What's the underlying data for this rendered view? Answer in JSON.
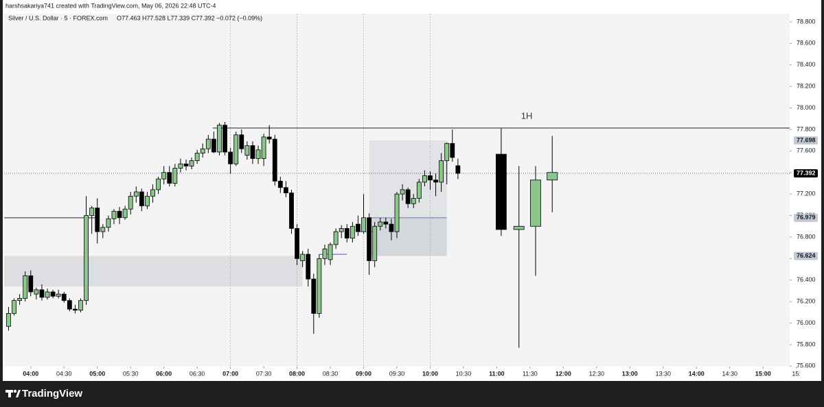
{
  "header": "harshsakariya741 created with TradingView.com, May 06, 2026 22:48 UTC-4",
  "footer_logo": "TradingView",
  "chart_data": {
    "type": "candlestick",
    "symbol_legend": "Silver / U.S. Dollar · 5 · FOREX.com",
    "ohlc_legend": "O77.463 H77.528 L77.339 C77.392 −0.072 (−0.09%)",
    "up_color": "#8cc68c",
    "down_color": "#000000",
    "xlim": [
      216,
      924
    ],
    "xticks": [
      {
        "value": 240,
        "label": "04:00"
      },
      {
        "value": 270,
        "label": "04:30"
      },
      {
        "value": 300,
        "label": "05:00"
      },
      {
        "value": 330,
        "label": "05:30"
      },
      {
        "value": 360,
        "label": "06:00"
      },
      {
        "value": 390,
        "label": "06:30"
      },
      {
        "value": 420,
        "label": "07:00"
      },
      {
        "value": 450,
        "label": "07:30"
      },
      {
        "value": 480,
        "label": "08:00"
      },
      {
        "value": 510,
        "label": "08:30"
      },
      {
        "value": 540,
        "label": "09:00"
      },
      {
        "value": 570,
        "label": "09:30"
      },
      {
        "value": 600,
        "label": "10:00"
      },
      {
        "value": 630,
        "label": "10:30"
      },
      {
        "value": 660,
        "label": "11:00"
      },
      {
        "value": 690,
        "label": "11:30"
      },
      {
        "value": 720,
        "label": "12:00"
      },
      {
        "value": 750,
        "label": "12:30"
      },
      {
        "value": 780,
        "label": "13:00"
      },
      {
        "value": 810,
        "label": "13:30"
      },
      {
        "value": 840,
        "label": "14:00"
      },
      {
        "value": 870,
        "label": "14:30"
      },
      {
        "value": 900,
        "label": "15:00"
      },
      {
        "value": 930,
        "label": "15:"
      }
    ],
    "ylim": [
      75.596,
      78.876
    ],
    "yticks": [
      {
        "value": 75.6,
        "label": "75.600"
      },
      {
        "value": 75.8,
        "label": "75.800"
      },
      {
        "value": 76.0,
        "label": "76.000"
      },
      {
        "value": 76.2,
        "label": "76.200"
      },
      {
        "value": 76.4,
        "label": "76.400"
      },
      {
        "value": 76.6,
        "label": "76.600"
      },
      {
        "value": 76.8,
        "label": "76.800"
      },
      {
        "value": 77.0,
        "label": "77.000"
      },
      {
        "value": 77.2,
        "label": "77.200"
      },
      {
        "value": 77.4,
        "label": "77.400"
      },
      {
        "value": 77.6,
        "label": "77.600"
      },
      {
        "value": 77.8,
        "label": "77.800"
      },
      {
        "value": 78.0,
        "label": "78.000"
      },
      {
        "value": 78.2,
        "label": "78.200"
      },
      {
        "value": 78.4,
        "label": "78.400"
      },
      {
        "value": 78.6,
        "label": "78.600"
      },
      {
        "value": 78.8,
        "label": "78.800"
      }
    ],
    "session_lines": [
      420,
      480,
      540,
      600
    ],
    "candles": {
      "x": [
        220,
        225,
        230,
        235,
        240,
        245,
        250,
        255,
        260,
        265,
        270,
        275,
        280,
        285,
        290,
        295,
        300,
        305,
        310,
        315,
        320,
        325,
        330,
        335,
        340,
        345,
        350,
        355,
        360,
        365,
        370,
        375,
        380,
        385,
        390,
        395,
        400,
        405,
        410,
        415,
        420,
        425,
        430,
        435,
        440,
        445,
        450,
        455,
        460,
        465,
        470,
        475,
        480,
        485,
        490,
        495,
        500,
        505,
        510,
        515,
        520,
        525,
        530,
        535,
        540,
        545,
        550,
        555,
        560,
        565,
        570,
        575,
        580,
        585,
        590,
        595,
        600,
        605,
        610,
        615,
        620,
        625
      ],
      "open": [
        75.97,
        76.09,
        76.21,
        76.23,
        76.44,
        76.27,
        76.31,
        76.24,
        76.29,
        76.25,
        76.27,
        76.21,
        76.13,
        76.12,
        76.21,
        77.0,
        77.07,
        76.85,
        76.89,
        76.97,
        77.04,
        76.98,
        77.06,
        77.18,
        77.22,
        77.09,
        77.18,
        77.24,
        77.34,
        77.4,
        77.3,
        77.44,
        77.48,
        77.46,
        77.51,
        77.58,
        77.62,
        77.71,
        77.59,
        77.84,
        77.59,
        77.48,
        77.75,
        77.56,
        77.65,
        77.53,
        77.53,
        77.73,
        77.71,
        77.32,
        77.26,
        77.21,
        76.88,
        76.58,
        76.64,
        76.41,
        76.09,
        76.6,
        76.59,
        76.73,
        76.85,
        76.88,
        76.79,
        76.92,
        76.85,
        76.98,
        76.58,
        76.9,
        76.94,
        76.92,
        76.85,
        77.2,
        77.24,
        77.11,
        77.16,
        77.31,
        77.37,
        77.33,
        77.31,
        77.51,
        77.67,
        77.463
      ],
      "high": [
        76.15,
        76.23,
        76.27,
        76.48,
        76.49,
        76.33,
        76.36,
        76.32,
        76.31,
        76.31,
        76.29,
        76.23,
        76.17,
        76.23,
        77.18,
        77.09,
        77.16,
        76.92,
        77.0,
        77.06,
        77.08,
        77.09,
        77.22,
        77.27,
        77.25,
        77.22,
        77.29,
        77.36,
        77.46,
        77.46,
        77.48,
        77.53,
        77.52,
        77.54,
        77.61,
        77.67,
        77.75,
        77.78,
        77.86,
        77.87,
        77.63,
        77.78,
        77.8,
        77.69,
        77.69,
        77.65,
        77.76,
        77.84,
        77.75,
        77.36,
        77.32,
        77.24,
        76.92,
        76.67,
        76.69,
        76.46,
        76.64,
        76.73,
        76.75,
        76.88,
        76.91,
        76.92,
        76.94,
        77.0,
        77.2,
        77.02,
        76.94,
        76.98,
        76.98,
        76.97,
        77.22,
        77.29,
        77.26,
        77.2,
        77.34,
        77.42,
        77.41,
        77.39,
        77.58,
        77.68,
        77.8,
        77.528
      ],
      "low": [
        75.93,
        76.07,
        76.17,
        76.2,
        76.25,
        76.22,
        76.21,
        76.22,
        76.23,
        76.23,
        76.19,
        76.11,
        76.09,
        76.1,
        76.17,
        76.83,
        76.74,
        76.79,
        76.85,
        76.92,
        76.92,
        76.96,
        77.01,
        77.12,
        77.04,
        77.06,
        77.12,
        77.2,
        77.29,
        77.27,
        77.27,
        77.4,
        77.42,
        77.43,
        77.48,
        77.54,
        77.58,
        77.58,
        77.56,
        77.56,
        77.39,
        77.46,
        77.58,
        77.52,
        77.48,
        77.48,
        77.46,
        77.67,
        77.28,
        77.21,
        77.17,
        76.83,
        76.54,
        76.52,
        76.34,
        75.9,
        76.05,
        76.54,
        76.54,
        76.69,
        76.79,
        76.75,
        76.75,
        76.81,
        76.83,
        76.45,
        76.52,
        76.86,
        76.88,
        76.77,
        76.79,
        77.14,
        77.07,
        77.07,
        77.12,
        77.27,
        77.24,
        77.18,
        77.22,
        77.29,
        77.5,
        77.339
      ],
      "close": [
        76.09,
        76.21,
        76.23,
        76.44,
        76.29,
        76.31,
        76.24,
        76.29,
        76.25,
        76.27,
        76.21,
        76.13,
        76.12,
        76.21,
        77.0,
        77.07,
        76.85,
        76.89,
        76.97,
        77.04,
        76.98,
        77.06,
        77.18,
        77.22,
        77.09,
        77.18,
        77.24,
        77.34,
        77.4,
        77.3,
        77.44,
        77.48,
        77.46,
        77.51,
        77.58,
        77.62,
        77.71,
        77.59,
        77.84,
        77.59,
        77.48,
        77.75,
        77.62,
        77.65,
        77.53,
        77.61,
        77.73,
        77.71,
        77.32,
        77.26,
        77.21,
        76.88,
        76.6,
        76.64,
        76.41,
        76.09,
        76.6,
        76.69,
        76.73,
        76.85,
        76.88,
        76.79,
        76.9,
        76.85,
        76.98,
        76.58,
        76.9,
        76.94,
        76.92,
        76.85,
        77.2,
        77.24,
        77.11,
        77.16,
        77.31,
        77.37,
        77.33,
        77.31,
        77.51,
        77.67,
        77.54,
        77.392
      ]
    },
    "projection": {
      "label": "1H",
      "x": [
        664,
        680,
        695,
        710
      ],
      "open": [
        77.57,
        76.87,
        76.9,
        77.33
      ],
      "high": [
        77.81,
        77.46,
        77.46,
        77.74
      ],
      "low": [
        76.81,
        75.77,
        76.44,
        77.03
      ],
      "close": [
        76.87,
        76.9,
        77.33,
        77.4
      ]
    },
    "zones": [
      {
        "x": [
          216,
          485
        ],
        "y": [
          76.34,
          76.624
        ],
        "color": "#dcdee2"
      },
      {
        "x": [
          545,
          615
        ],
        "y": [
          76.979,
          77.698
        ],
        "color": "#e1e3e6"
      },
      {
        "x": [
          545,
          615
        ],
        "y": [
          76.624,
          76.979
        ],
        "color": "#d3d8dd"
      }
    ],
    "lines": [
      {
        "x": [
          404,
          924
        ],
        "value": 77.813,
        "color": "#222222"
      },
      {
        "x": [
          216,
          299
        ],
        "value": 76.979,
        "color": "#222222"
      },
      {
        "x": [
          545,
          615
        ],
        "value": 76.979,
        "color": "#5b7bb0"
      },
      {
        "x": [
          500,
          525
        ],
        "value": 76.64,
        "color": "#2962ff"
      },
      {
        "x": [
          535,
          550
        ],
        "value": 76.85,
        "color": "#2962ff"
      }
    ],
    "current_price": 77.392,
    "price_labels": [
      {
        "value": 77.698,
        "label": "77.698",
        "color": "#c3cad3",
        "text_color": "#131722"
      },
      {
        "value": 77.392,
        "label": "77.392",
        "color": "#000000",
        "text_color": "#ffffff"
      },
      {
        "value": 76.979,
        "label": "76.979",
        "color": "#c3cad3",
        "text_color": "#131722"
      },
      {
        "value": 76.624,
        "label": "76.624",
        "color": "#c3cad3",
        "text_color": "#131722"
      }
    ]
  }
}
